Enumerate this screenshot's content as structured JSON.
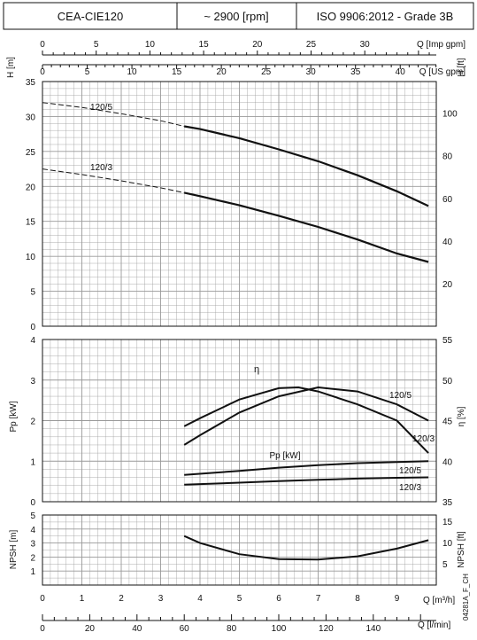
{
  "header": {
    "model": "CEA-CIE120",
    "speed": "~ 2900 [rpm]",
    "standard": "ISO 9906:2012 - Grade 3B"
  },
  "axes": {
    "q_imp_gpm_label": "Q [Imp gpm]",
    "q_us_gpm_label": "Q [US gpm]",
    "q_m3h_label": "Q [m³/h]",
    "q_lmin_label": "Q [l/min]",
    "h_m_label": "H [m]",
    "h_ft_label": "H [ft]",
    "pp_label": "Pp [kW]",
    "eta_label": "η [%]",
    "npsh_m_label": "NPSH [m]",
    "npsh_ft_label": "NPSH [ft]"
  },
  "footer_code": "04281A_F_CH",
  "chart_data": {
    "type": "line",
    "x_unit": "m³/h",
    "x_range": [
      0,
      10
    ],
    "scales": {
      "q_m3h_ticks": [
        0,
        1,
        2,
        3,
        4,
        5,
        6,
        7,
        8,
        9
      ],
      "q_lmin_ticks": [
        0,
        20,
        40,
        60,
        80,
        100,
        120,
        140
      ],
      "q_imp_gpm_ticks": [
        0,
        5,
        10,
        15,
        20,
        25,
        30
      ],
      "q_us_gpm_ticks": [
        0,
        5,
        10,
        15,
        20,
        25,
        30,
        35,
        40
      ],
      "h_m_ticks": [
        0,
        5,
        10,
        15,
        20,
        25,
        30,
        35
      ],
      "h_ft_ticks": [
        20,
        40,
        60,
        80,
        100
      ],
      "pp_kw_ticks": [
        0,
        1,
        2,
        3,
        4
      ],
      "eta_pct_ticks": [
        35,
        40,
        45,
        50,
        55
      ],
      "npsh_m_ticks": [
        1,
        2,
        3,
        4,
        5
      ],
      "npsh_ft_ticks": [
        5,
        10,
        15
      ]
    },
    "panels": [
      {
        "name": "head",
        "ylim": [
          0,
          35
        ],
        "ylim_right_ft": [
          0,
          114.83
        ],
        "series": [
          {
            "name": "120/5",
            "dashed": [
              [
                0,
                32.0
              ],
              [
                1,
                31.3
              ],
              [
                2,
                30.4
              ],
              [
                3,
                29.4
              ],
              [
                3.6,
                28.6
              ]
            ],
            "solid": [
              [
                3.6,
                28.6
              ],
              [
                4,
                28.2
              ],
              [
                5,
                26.9
              ],
              [
                6,
                25.3
              ],
              [
                7,
                23.6
              ],
              [
                8,
                21.6
              ],
              [
                9,
                19.3
              ],
              [
                9.8,
                17.2
              ]
            ]
          },
          {
            "name": "120/3",
            "dashed": [
              [
                0,
                22.5
              ],
              [
                1,
                21.7
              ],
              [
                2,
                20.8
              ],
              [
                3,
                19.8
              ],
              [
                3.6,
                19.1
              ]
            ],
            "solid": [
              [
                3.6,
                19.1
              ],
              [
                4,
                18.6
              ],
              [
                5,
                17.3
              ],
              [
                6,
                15.8
              ],
              [
                7,
                14.2
              ],
              [
                8,
                12.4
              ],
              [
                9,
                10.4
              ],
              [
                9.8,
                9.2
              ]
            ]
          }
        ]
      },
      {
        "name": "power_efficiency",
        "ylim": [
          0,
          4
        ],
        "ylim_right_pct": [
          35,
          55
        ],
        "pp_label": "Pp [kW]",
        "eta_symbol": "η",
        "series": [
          {
            "name": "η 120/5",
            "axis": "eta",
            "points": [
              [
                3.6,
                44.3
              ],
              [
                4,
                45.3
              ],
              [
                5,
                47.6
              ],
              [
                6,
                49.0
              ],
              [
                6.5,
                49.1
              ],
              [
                7,
                48.6
              ],
              [
                8,
                47.0
              ],
              [
                9,
                45.0
              ],
              [
                9.8,
                41.0
              ]
            ]
          },
          {
            "name": "η 120/3",
            "axis": "eta",
            "points": [
              [
                3.6,
                42.0
              ],
              [
                4,
                43.2
              ],
              [
                5,
                46.0
              ],
              [
                6,
                48.0
              ],
              [
                7,
                49.1
              ],
              [
                8,
                48.6
              ],
              [
                9,
                47.0
              ],
              [
                9.8,
                45.0
              ]
            ]
          },
          {
            "name": "Pp 120/5",
            "axis": "pp",
            "points": [
              [
                3.6,
                0.66
              ],
              [
                5,
                0.76
              ],
              [
                6,
                0.84
              ],
              [
                7,
                0.9
              ],
              [
                8,
                0.95
              ],
              [
                9,
                0.98
              ],
              [
                9.8,
                1.0
              ]
            ]
          },
          {
            "name": "Pp 120/3",
            "axis": "pp",
            "points": [
              [
                3.6,
                0.42
              ],
              [
                5,
                0.47
              ],
              [
                6,
                0.51
              ],
              [
                7,
                0.54
              ],
              [
                8,
                0.57
              ],
              [
                9,
                0.59
              ],
              [
                9.8,
                0.6
              ]
            ]
          }
        ],
        "labels": [
          "120/5",
          "120/3",
          "120/5",
          "120/3"
        ]
      },
      {
        "name": "npsh",
        "ylim": [
          0,
          5
        ],
        "ylim_right_ft": [
          0,
          16.4
        ],
        "series": [
          {
            "name": "NPSH",
            "points": [
              [
                3.6,
                3.5
              ],
              [
                4,
                3.0
              ],
              [
                5,
                2.2
              ],
              [
                6,
                1.85
              ],
              [
                7,
                1.82
              ],
              [
                8,
                2.05
              ],
              [
                9,
                2.6
              ],
              [
                9.8,
                3.2
              ]
            ]
          }
        ]
      }
    ]
  }
}
